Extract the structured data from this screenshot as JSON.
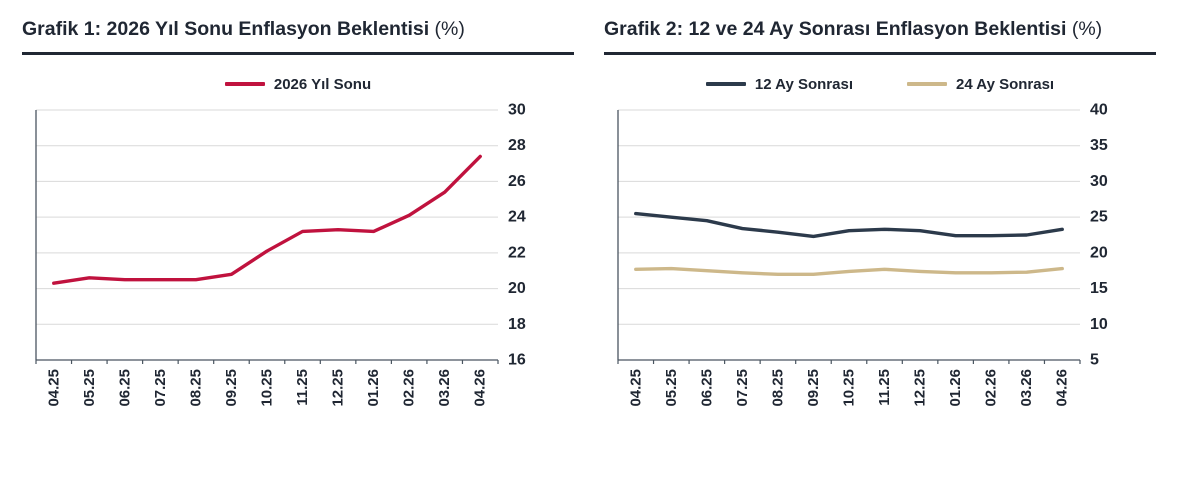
{
  "styles": {
    "grid_color": "#d9d9d9",
    "axis_color": "#4a5560",
    "text_color": "#202733",
    "rule_color": "#202733"
  },
  "chart_data": [
    {
      "type": "line",
      "title": "Grafik 1: 2026 Yıl Sonu Enflasyon Beklentisi",
      "unit": "(%)",
      "legend_position": "top-center",
      "yaxis_side": "right",
      "grid": "horizontal",
      "x": [
        "04.25",
        "05.25",
        "06.25",
        "07.25",
        "08.25",
        "09.25",
        "10.25",
        "11.25",
        "12.25",
        "01.26",
        "02.26",
        "03.26",
        "04.26"
      ],
      "series": [
        {
          "name": "2026 Yıl Sonu",
          "color": "#c0123e",
          "values": [
            20.3,
            20.6,
            20.5,
            20.5,
            20.5,
            20.8,
            22.1,
            23.2,
            23.3,
            23.2,
            24.1,
            25.4,
            27.4
          ]
        }
      ],
      "ylim": [
        16,
        30
      ],
      "ytick_step": 2
    },
    {
      "type": "line",
      "title": "Grafik 2: 12 ve 24 Ay Sonrası Enflasyon Beklentisi",
      "unit": "(%)",
      "legend_position": "top-center",
      "yaxis_side": "right",
      "grid": "horizontal",
      "x": [
        "04.25",
        "05.25",
        "06.25",
        "07.25",
        "08.25",
        "09.25",
        "10.25",
        "11.25",
        "12.25",
        "01.26",
        "02.26",
        "03.26",
        "04.26"
      ],
      "series": [
        {
          "name": "12 Ay Sonrası",
          "color": "#2c3a4b",
          "values": [
            25.5,
            25.0,
            24.5,
            23.4,
            22.9,
            22.3,
            23.1,
            23.3,
            23.1,
            22.4,
            22.4,
            22.5,
            23.3
          ]
        },
        {
          "name": "24 Ay Sonrası",
          "color": "#cdb88a",
          "values": [
            17.7,
            17.8,
            17.5,
            17.2,
            17.0,
            17.0,
            17.4,
            17.7,
            17.4,
            17.2,
            17.2,
            17.3,
            17.8
          ]
        }
      ],
      "ylim": [
        5,
        40
      ],
      "ytick_step": 5
    }
  ]
}
